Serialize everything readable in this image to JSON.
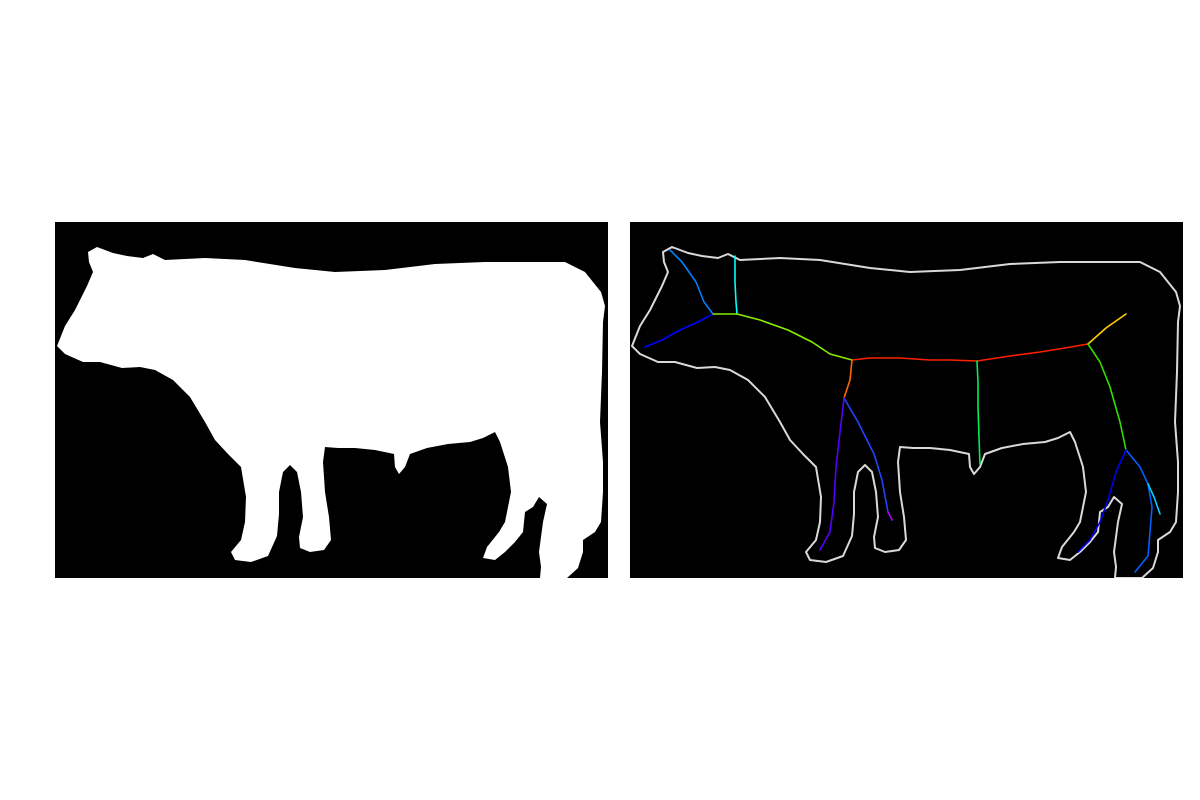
{
  "figure": {
    "panels": [
      {
        "id": "silhouette-mask",
        "background_color": "#000000",
        "foreground_color": "#ffffff"
      },
      {
        "id": "skeleton-overlay",
        "background_color": "#000000",
        "contour_color": "#d9d9d9",
        "skeleton_palette": [
          "#ff0000",
          "#ff8000",
          "#ffff00",
          "#00ff00",
          "#00ffff",
          "#0080ff",
          "#0000ff",
          "#8000ff",
          "#ff00ff"
        ]
      }
    ]
  }
}
